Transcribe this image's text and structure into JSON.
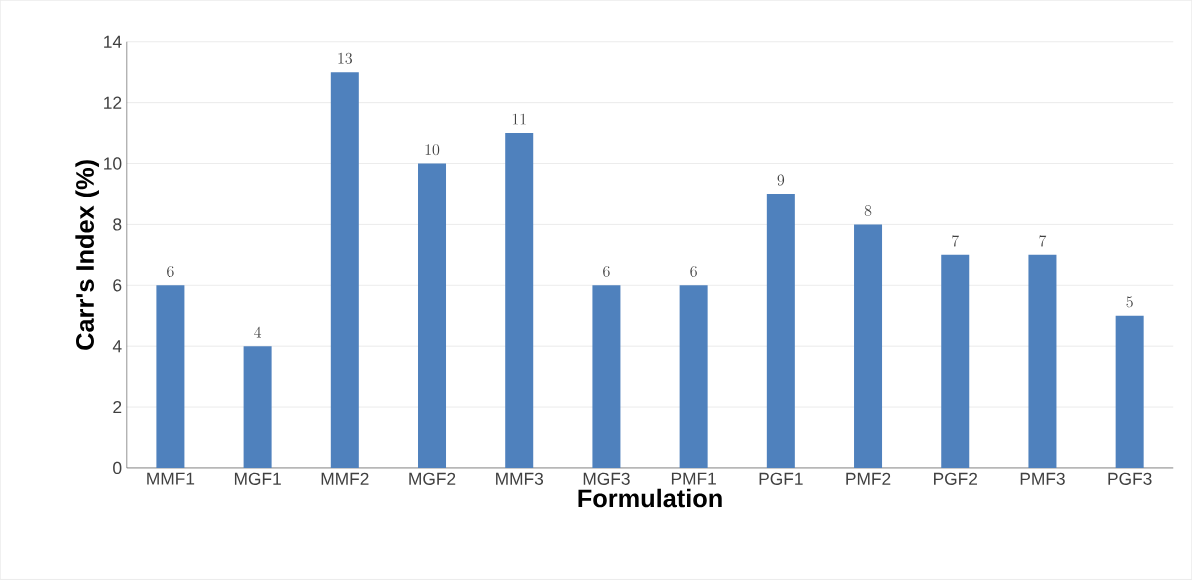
{
  "chart_data": {
    "type": "bar",
    "xlabel": "Formulation",
    "ylabel": "Carr's Index (%)",
    "categories": [
      "MMF1",
      "MGF1",
      "MMF2",
      "MGF2",
      "MMF3",
      "MGF3",
      "PMF1",
      "PGF1",
      "PMF2",
      "PGF2",
      "PMF3",
      "PGF3"
    ],
    "values": [
      6,
      4,
      13,
      10,
      11,
      6,
      6,
      9,
      8,
      7,
      7,
      5
    ],
    "color": "#4f81bd",
    "ylim": [
      0,
      14
    ],
    "yticks": [
      0,
      2,
      4,
      6,
      8,
      10,
      12,
      14
    ],
    "grid": "y",
    "data_labels": true
  }
}
